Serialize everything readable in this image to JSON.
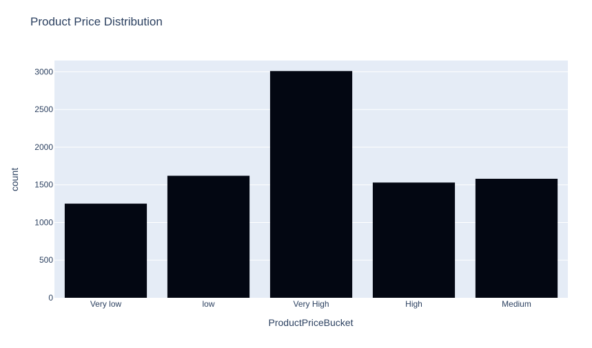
{
  "chart_data": {
    "type": "bar",
    "title": "Product Price Distribution",
    "xlabel": "ProductPriceBucket",
    "ylabel": "count",
    "categories": [
      "Very low",
      "low",
      "Very High",
      "High",
      "Medium"
    ],
    "values": [
      1250,
      1620,
      3010,
      1530,
      1580
    ],
    "ylim": [
      0,
      3150
    ],
    "yticks": [
      0,
      500,
      1000,
      1500,
      2000,
      2500,
      3000
    ],
    "grid": true,
    "legend": "none",
    "colors": {
      "bar": "#030712",
      "plot_background": "#e5ecf6",
      "grid": "#ffffff",
      "text": "#2a3f5f"
    }
  }
}
